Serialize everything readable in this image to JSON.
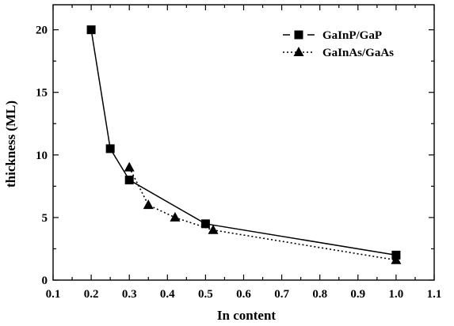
{
  "chart_data": {
    "type": "line",
    "xlabel": "In content",
    "ylabel": "thickness (ML)",
    "xlim": [
      0.1,
      1.1
    ],
    "ylim": [
      0,
      22
    ],
    "xticks": [
      "0.1",
      "0.2",
      "0.3",
      "0.4",
      "0.5",
      "0.6",
      "0.7",
      "0.8",
      "0.9",
      "1.0",
      "1.1"
    ],
    "yticks": [
      "0",
      "5",
      "10",
      "15",
      "20"
    ],
    "grid": false,
    "legend_position": "top-right",
    "series": [
      {
        "name": "GaInP/GaP",
        "marker": "square",
        "line_style": "solid",
        "x": [
          0.2,
          0.25,
          0.3,
          0.5,
          1.0
        ],
        "y": [
          20,
          10.5,
          8,
          4.5,
          2
        ]
      },
      {
        "name": "GaInAs/GaAs",
        "marker": "triangle",
        "line_style": "dotted",
        "x": [
          0.3,
          0.35,
          0.42,
          0.52,
          1.0
        ],
        "y": [
          9,
          6,
          5,
          4,
          1.6
        ]
      }
    ]
  }
}
